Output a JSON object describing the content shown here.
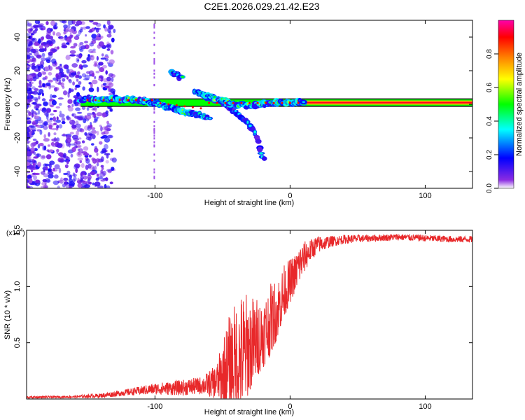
{
  "title": "C2E1.2026.029.21.42.E23",
  "chart_data": [
    {
      "type": "heatmap",
      "name": "spectrogram",
      "xlabel": "Height of straight line (km)",
      "ylabel": "Frequency (Hz)",
      "xlim": [
        -195,
        135
      ],
      "ylim": [
        -50,
        50
      ],
      "xticks": [
        -100,
        0,
        100
      ],
      "yticks": [
        -40,
        -20,
        0,
        20,
        40
      ],
      "colorbar": {
        "label": "Normalized spectral amplitude",
        "range": [
          0,
          1
        ],
        "ticks": [
          0.0,
          0.2,
          0.4,
          0.6,
          0.8
        ],
        "colors": [
          "#ffffff",
          "#8a2be2",
          "#0000ff",
          "#00ffff",
          "#00ff00",
          "#ffff00",
          "#ff8000",
          "#ff0000",
          "#ff00aa"
        ]
      },
      "features": [
        {
          "label": "carrier",
          "x_start": -155,
          "x_end": 135,
          "freq": 1,
          "amplitude": 0.9
        },
        {
          "label": "branch-a",
          "x": [
            -155,
            -120,
            -100,
            -85,
            -70,
            -60
          ],
          "freq": [
            3,
            3,
            1,
            -3,
            -6,
            -8
          ],
          "amplitude": 0.55
        },
        {
          "label": "branch-b",
          "x": [
            -65,
            -55,
            -45,
            -35,
            -25,
            -20
          ],
          "freq": [
            5,
            3,
            -2,
            -8,
            -18,
            -33
          ],
          "amplitude": 0.35
        },
        {
          "label": "branch-c",
          "x": [
            -88,
            -80
          ],
          "freq": [
            19,
            16
          ],
          "amplitude": 0.45
        },
        {
          "label": "branch-d",
          "x": [
            -70,
            -60,
            -50,
            -40,
            -30,
            -20,
            -10,
            0,
            10
          ],
          "freq": [
            7,
            5,
            2,
            0,
            -1,
            0,
            1,
            1,
            1
          ],
          "amplitude": 0.6
        }
      ]
    },
    {
      "type": "line",
      "name": "snr",
      "xlabel": "Height of straight line (km)",
      "ylabel": "SNR (10 * v/v)",
      "scale_label": "(x10",
      "scale_exp": "4",
      "xlim": [
        -195,
        135
      ],
      "ylim": [
        0,
        1.5
      ],
      "xticks": [
        -100,
        0,
        100
      ],
      "yticks": [
        0.5,
        1.0,
        1.5
      ],
      "ytick_labels": [
        "0.5",
        "1.0",
        "1.5"
      ],
      "color": "#e8282a",
      "envelope": {
        "x": [
          -195,
          -160,
          -140,
          -120,
          -100,
          -80,
          -65,
          -55,
          -50,
          -45,
          -40,
          -35,
          -30,
          -25,
          -20,
          -15,
          -10,
          -5,
          0,
          5,
          10,
          15,
          20,
          30,
          40,
          60,
          80,
          100,
          120,
          135
        ],
        "base": [
          0.015,
          0.02,
          0.03,
          0.06,
          0.09,
          0.1,
          0.12,
          0.15,
          0.25,
          0.35,
          0.4,
          0.45,
          0.5,
          0.55,
          0.6,
          0.7,
          0.8,
          0.95,
          1.05,
          1.15,
          1.25,
          1.32,
          1.37,
          1.4,
          1.42,
          1.43,
          1.44,
          1.43,
          1.42,
          1.42
        ],
        "spread": [
          0.01,
          0.01,
          0.02,
          0.03,
          0.05,
          0.07,
          0.08,
          0.15,
          0.35,
          0.5,
          0.6,
          0.65,
          0.55,
          0.45,
          0.4,
          0.4,
          0.35,
          0.3,
          0.25,
          0.2,
          0.15,
          0.1,
          0.08,
          0.05,
          0.04,
          0.03,
          0.03,
          0.03,
          0.03,
          0.03
        ]
      }
    }
  ]
}
